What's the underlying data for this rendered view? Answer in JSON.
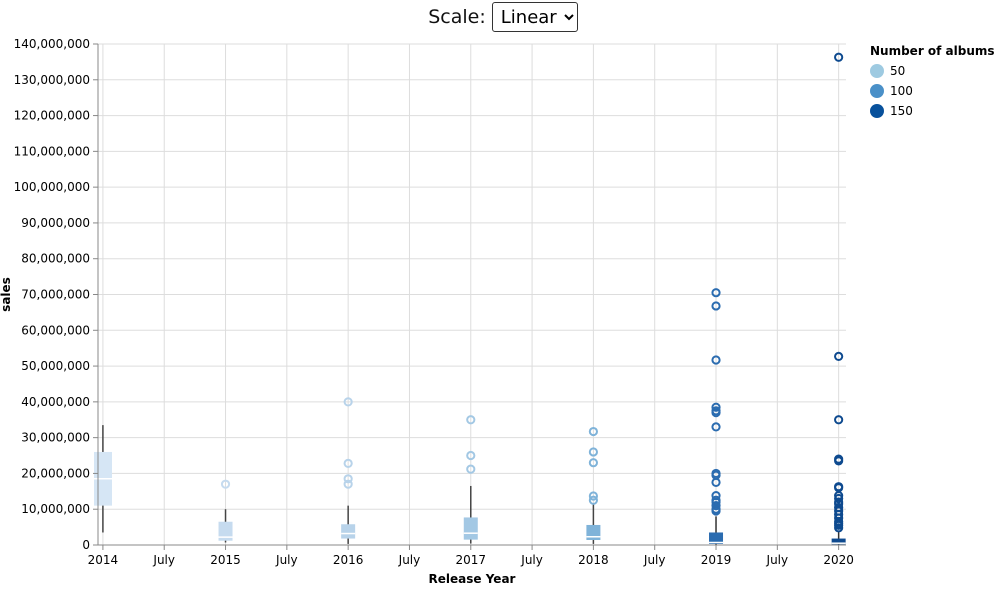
{
  "controls": {
    "scale_label": "Scale:",
    "scale_selected": "Linear"
  },
  "chart_data": {
    "type": "boxplot",
    "xlabel": "Release Year",
    "ylabel": "sales",
    "ylim": [
      0,
      140000000
    ],
    "y_ticks": [
      "0",
      "10,000,000",
      "20,000,000",
      "30,000,000",
      "40,000,000",
      "50,000,000",
      "60,000,000",
      "70,000,000",
      "80,000,000",
      "90,000,000",
      "100,000,000",
      "110,000,000",
      "120,000,000",
      "130,000,000",
      "140,000,000"
    ],
    "y_tick_values": [
      0,
      10000000,
      20000000,
      30000000,
      40000000,
      50000000,
      60000000,
      70000000,
      80000000,
      90000000,
      100000000,
      110000000,
      120000000,
      130000000,
      140000000
    ],
    "x_ticks": [
      {
        "label": "2014",
        "t": 2014.0
      },
      {
        "label": "July",
        "t": 2014.5
      },
      {
        "label": "2015",
        "t": 2015.0
      },
      {
        "label": "July",
        "t": 2015.5
      },
      {
        "label": "2016",
        "t": 2016.0
      },
      {
        "label": "July",
        "t": 2016.5
      },
      {
        "label": "2017",
        "t": 2017.0
      },
      {
        "label": "July",
        "t": 2017.5
      },
      {
        "label": "2018",
        "t": 2018.0
      },
      {
        "label": "July",
        "t": 2018.5
      },
      {
        "label": "2019",
        "t": 2019.0
      },
      {
        "label": "July",
        "t": 2019.5
      },
      {
        "label": "2020",
        "t": 2020.0
      }
    ],
    "grid": true,
    "legend": {
      "title": "Number of albums",
      "placement": "top-right",
      "entries": [
        {
          "label": "50",
          "color": "#9ecae1"
        },
        {
          "label": "100",
          "color": "#4a90c8"
        },
        {
          "label": "150",
          "color": "#08519c"
        }
      ]
    },
    "boxes": [
      {
        "year": "2014",
        "color": "#d6e6f5",
        "whisker_color": "#444444",
        "min": 3500000,
        "q1": 11000000,
        "median": 18500000,
        "q3": 26000000,
        "max": 33500000,
        "outliers": []
      },
      {
        "year": "2015",
        "color": "#c6dbef",
        "whisker_color": "#444444",
        "min": 700000,
        "q1": 1200000,
        "median": 2200000,
        "q3": 6500000,
        "max": 10000000,
        "outliers": [
          17000000
        ]
      },
      {
        "year": "2016",
        "color": "#b8d3ea",
        "whisker_color": "#444444",
        "min": 300000,
        "q1": 1800000,
        "median": 3200000,
        "q3": 5800000,
        "max": 11000000,
        "outliers": [
          17000000,
          18500000,
          22800000,
          40000000
        ]
      },
      {
        "year": "2017",
        "color": "#a3c8e4",
        "whisker_color": "#444444",
        "min": 400000,
        "q1": 1500000,
        "median": 3300000,
        "q3": 7700000,
        "max": 16500000,
        "outliers": [
          21200000,
          25000000,
          35000000
        ]
      },
      {
        "year": "2018",
        "color": "#7fb3d9",
        "whisker_color": "#444444",
        "min": 300000,
        "q1": 1400000,
        "median": 2300000,
        "q3": 5600000,
        "max": 11500000,
        "outliers": [
          12500000,
          13700000,
          23000000,
          26000000,
          31700000
        ]
      },
      {
        "year": "2019",
        "color": "#2b6cb0",
        "whisker_color": "#333333",
        "min": 50000,
        "q1": 300000,
        "median": 700000,
        "q3": 3500000,
        "max": 8000000,
        "outliers": [
          9500000,
          10000000,
          11000000,
          12000000,
          12500000,
          13800000,
          17500000,
          19500000,
          20000000,
          33000000,
          37000000,
          37500000,
          38500000,
          51700000,
          66800000,
          70500000
        ]
      },
      {
        "year": "2020",
        "color": "#0e4a8f",
        "whisker_color": "#333333",
        "min": 20000,
        "q1": 200000,
        "median": 500000,
        "q3": 1800000,
        "max": 3800000,
        "outliers": [
          4800000,
          5500000,
          6000000,
          6500000,
          7500000,
          8500000,
          9500000,
          10500000,
          11500000,
          12000000,
          13000000,
          13800000,
          16000000,
          16300000,
          23500000,
          24000000,
          35000000,
          52700000,
          136300000
        ]
      }
    ]
  }
}
